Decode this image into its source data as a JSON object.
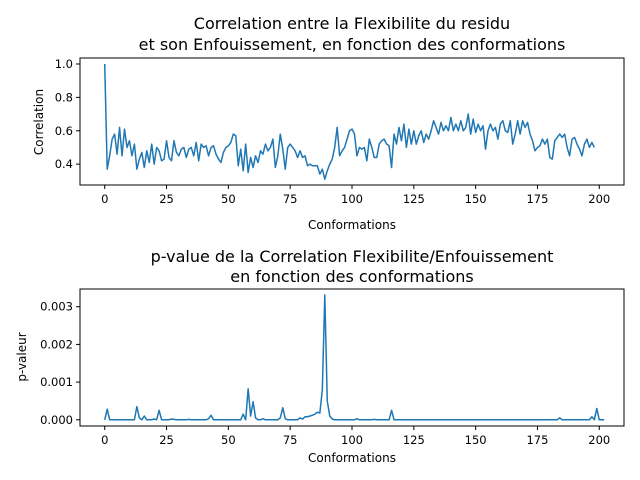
{
  "chart_data": [
    {
      "type": "line",
      "title": [
        "Correlation entre la Flexibilite du residu",
        "et son Enfouissement, en fonction des conformations"
      ],
      "xlabel": "Conformations",
      "ylabel": "Correlation",
      "xlim": [
        -10,
        210
      ],
      "ylim": [
        0.275,
        1.036
      ],
      "xticks": [
        0,
        25,
        50,
        75,
        100,
        125,
        150,
        175,
        200
      ],
      "yticks": [
        0.4,
        0.6,
        0.8,
        1.0
      ],
      "ytick_labels": [
        "0.4",
        "0.6",
        "0.8",
        "1.0"
      ],
      "series": [
        {
          "color": "#1f77b4",
          "x_start": 0,
          "x_step": 1,
          "values": [
            1.0,
            0.37,
            0.45,
            0.55,
            0.58,
            0.46,
            0.62,
            0.45,
            0.61,
            0.5,
            0.54,
            0.45,
            0.52,
            0.37,
            0.43,
            0.47,
            0.38,
            0.48,
            0.41,
            0.52,
            0.4,
            0.5,
            0.48,
            0.42,
            0.43,
            0.54,
            0.44,
            0.42,
            0.54,
            0.47,
            0.45,
            0.49,
            0.5,
            0.44,
            0.49,
            0.5,
            0.45,
            0.53,
            0.42,
            0.52,
            0.5,
            0.51,
            0.45,
            0.5,
            0.51,
            0.46,
            0.43,
            0.41,
            0.47,
            0.5,
            0.51,
            0.53,
            0.58,
            0.57,
            0.39,
            0.49,
            0.36,
            0.52,
            0.35,
            0.44,
            0.38,
            0.45,
            0.41,
            0.48,
            0.46,
            0.52,
            0.48,
            0.5,
            0.55,
            0.38,
            0.45,
            0.58,
            0.49,
            0.37,
            0.5,
            0.52,
            0.5,
            0.48,
            0.44,
            0.48,
            0.44,
            0.45,
            0.39,
            0.4,
            0.39,
            0.39,
            0.39,
            0.34,
            0.37,
            0.31,
            0.36,
            0.4,
            0.43,
            0.5,
            0.62,
            0.45,
            0.48,
            0.5,
            0.55,
            0.6,
            0.61,
            0.58,
            0.45,
            0.5,
            0.49,
            0.5,
            0.42,
            0.55,
            0.5,
            0.44,
            0.44,
            0.52,
            0.54,
            0.55,
            0.52,
            0.51,
            0.38,
            0.58,
            0.52,
            0.62,
            0.54,
            0.64,
            0.5,
            0.61,
            0.52,
            0.6,
            0.52,
            0.57,
            0.6,
            0.53,
            0.58,
            0.55,
            0.6,
            0.66,
            0.62,
            0.58,
            0.65,
            0.6,
            0.63,
            0.6,
            0.68,
            0.6,
            0.64,
            0.6,
            0.66,
            0.6,
            0.62,
            0.7,
            0.58,
            0.67,
            0.59,
            0.64,
            0.6,
            0.63,
            0.49,
            0.6,
            0.64,
            0.6,
            0.62,
            0.55,
            0.64,
            0.66,
            0.6,
            0.59,
            0.66,
            0.52,
            0.58,
            0.66,
            0.58,
            0.66,
            0.62,
            0.65,
            0.58,
            0.54,
            0.48,
            0.5,
            0.51,
            0.55,
            0.52,
            0.55,
            0.44,
            0.43,
            0.54,
            0.56,
            0.58,
            0.56,
            0.58,
            0.5,
            0.45,
            0.55,
            0.56,
            0.52,
            0.49,
            0.45,
            0.52,
            0.55,
            0.5,
            0.53,
            0.5
          ]
        }
      ]
    },
    {
      "type": "line",
      "title": [
        "p-value de la Correlation Flexibilite/Enfouissement",
        "en fonction des conformations"
      ],
      "xlabel": "Conformations",
      "ylabel": "p-valeur",
      "xlim": [
        -10,
        210
      ],
      "ylim": [
        -0.000165,
        0.00347
      ],
      "xticks": [
        0,
        25,
        50,
        75,
        100,
        125,
        150,
        175,
        200
      ],
      "yticks": [
        0.0,
        0.001,
        0.002,
        0.003
      ],
      "ytick_labels": [
        "0.000",
        "0.001",
        "0.002",
        "0.003"
      ],
      "series": [
        {
          "color": "#1f77b4",
          "x_start": 0,
          "x_step": 1,
          "values": [
            0,
            0.00028,
            0,
            0,
            0,
            0,
            0,
            0,
            0,
            0,
            0,
            0,
            0,
            0.00035,
            5e-05,
            0,
            0.0001,
            0,
            0,
            0,
            2e-05,
            0,
            0.00025,
            0,
            0,
            0,
            0,
            2e-05,
            1e-05,
            0,
            0,
            0,
            0,
            0,
            1e-05,
            0,
            0,
            0,
            0,
            0,
            0,
            0,
            3e-05,
            0.00012,
            0,
            0,
            0,
            0,
            0,
            0,
            0,
            0,
            0,
            0,
            0,
            0,
            0.00015,
            0,
            0.00082,
            0.0001,
            0.00048,
            5e-05,
            0,
            0,
            3e-05,
            0,
            0,
            0,
            0,
            0,
            0,
            5e-05,
            0.00032,
            3e-05,
            0,
            0,
            0,
            0,
            0,
            5e-05,
            2e-05,
            8e-05,
            8e-05,
            0.0001,
            0.00012,
            0.00015,
            0.0002,
            0.00018,
            0.0008,
            0.00331,
            0.0005,
            0.0001,
            2e-05,
            0,
            0,
            0,
            0,
            0,
            0,
            0,
            0,
            0,
            3e-05,
            0,
            0,
            0,
            0,
            0,
            0,
            1e-05,
            0,
            0,
            0,
            0,
            0,
            0,
            0.00025,
            0,
            0,
            0,
            0,
            0,
            0,
            0,
            0,
            0,
            0,
            0,
            0,
            0,
            0,
            0,
            0,
            0,
            0,
            0,
            0,
            0,
            0,
            0,
            0,
            0,
            0,
            0,
            0,
            0,
            0,
            0,
            0,
            0,
            0,
            0,
            0,
            0,
            0,
            0,
            0,
            0,
            0,
            0,
            0,
            0,
            0,
            0,
            0,
            0,
            0,
            0,
            0,
            0,
            0,
            0,
            0,
            0,
            0,
            0,
            0,
            0,
            0,
            0,
            0,
            0,
            0,
            0,
            5e-05,
            0,
            0,
            0,
            0,
            0,
            0,
            0,
            0,
            0,
            0,
            0,
            0,
            8e-05,
            0,
            0.0003,
            0,
            0,
            0
          ]
        }
      ]
    }
  ]
}
